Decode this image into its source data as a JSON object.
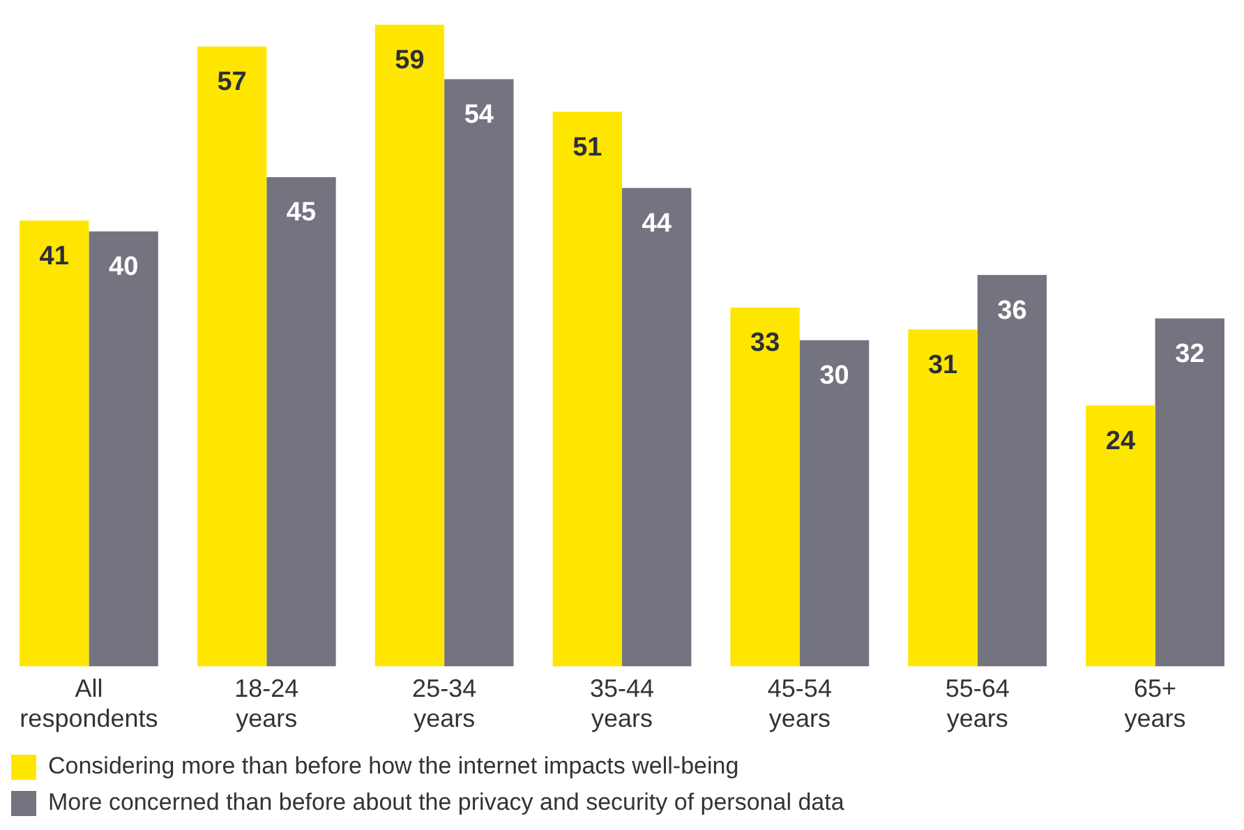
{
  "chart_data": {
    "type": "bar",
    "categories": [
      "All respondents",
      "18-24 years",
      "25-34 years",
      "35-44 years",
      "45-54 years",
      "55-64 years",
      "65+ years"
    ],
    "series": [
      {
        "name": "Considering more than before how the internet impacts well-being",
        "color": "#ffe600",
        "values": [
          41,
          57,
          59,
          51,
          33,
          31,
          24
        ]
      },
      {
        "name": "More concerned than before about the privacy and security of personal data",
        "color": "#747480",
        "values": [
          40,
          45,
          54,
          44,
          30,
          36,
          32
        ]
      }
    ],
    "data_labels": true,
    "legend": "bottom left",
    "grid": false,
    "tick_labels": "x"
  }
}
